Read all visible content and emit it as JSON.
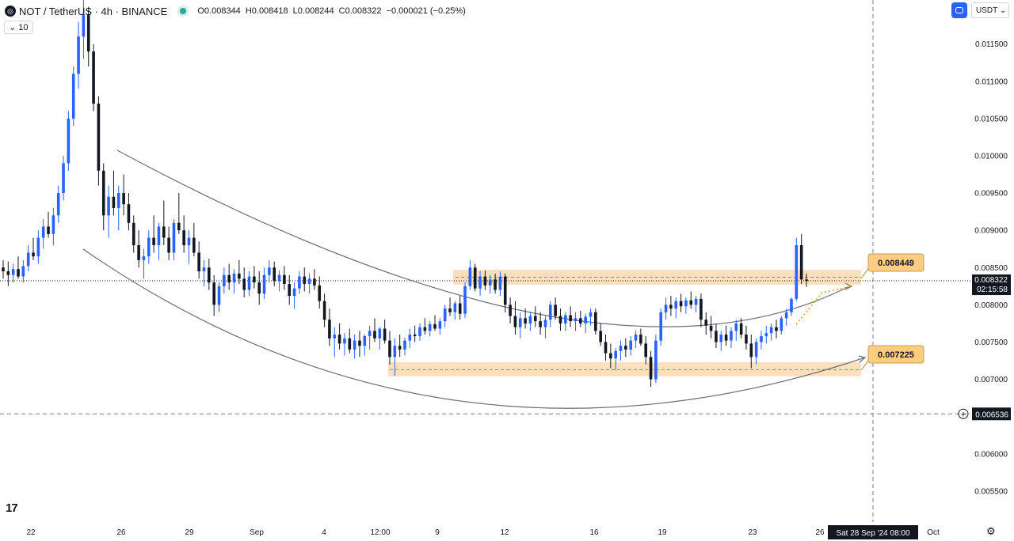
{
  "header": {
    "symbol_title": "NOT / TetherUS · 4h · BINANCE",
    "open_label": "O",
    "open": "0.008344",
    "high_label": "H",
    "high": "0.008418",
    "low_label": "L",
    "low": "0.008244",
    "close_label": "C",
    "close": "0.008322",
    "change": "−0.000021 (−0.25%)",
    "indicator_value": "10",
    "currency": "USDT"
  },
  "colors": {
    "up": "#2962ff",
    "down": "#131722",
    "zone": "#fbd5a8",
    "label_bg": "#ffcc80",
    "projection": "#ff9800",
    "curve": "#6b6e78"
  },
  "chart_data": {
    "type": "candlestick",
    "title": "",
    "xlabel": "",
    "ylabel": "",
    "ylim": [
      0.0052,
      0.0121
    ],
    "y_ticks": [
      "0.011500",
      "0.011000",
      "0.010500",
      "0.010000",
      "0.009500",
      "0.009000",
      "0.008500",
      "0.008000",
      "0.007500",
      "0.007000",
      "0.006500",
      "0.006000",
      "0.005500"
    ],
    "x_ticks": [
      "22",
      "26",
      "29",
      "Sep",
      "4",
      "12:00",
      "9",
      "12",
      "16",
      "19",
      "23",
      "26",
      "Oct"
    ],
    "last_price": "0.008322",
    "countdown": "02:15:58",
    "crosshair_price": "0.006536",
    "crosshair_time": "Sat 28 Sep '24   08:00",
    "resistance_zone": [
      0.00827,
      0.00847
    ],
    "support_zone": [
      0.00704,
      0.00723
    ],
    "targets": [
      "0.008449",
      "0.007225"
    ],
    "series": [
      {
        "name": "",
        "points": [
          [
            0.0085,
            0.0086,
            0.00835,
            0.00845
          ],
          [
            0.00845,
            0.00858,
            0.00825,
            0.0084
          ],
          [
            0.0084,
            0.00855,
            0.0083,
            0.00848
          ],
          [
            0.00848,
            0.00865,
            0.00835,
            0.00838
          ],
          [
            0.00838,
            0.0086,
            0.0083,
            0.00852
          ],
          [
            0.00852,
            0.0088,
            0.00845,
            0.0087
          ],
          [
            0.0087,
            0.0089,
            0.0086,
            0.00865
          ],
          [
            0.00865,
            0.009,
            0.00855,
            0.0089
          ],
          [
            0.0089,
            0.00915,
            0.00875,
            0.00905
          ],
          [
            0.00905,
            0.00925,
            0.0089,
            0.00895
          ],
          [
            0.00895,
            0.0093,
            0.0088,
            0.0092
          ],
          [
            0.0092,
            0.0096,
            0.0091,
            0.0095
          ],
          [
            0.0095,
            0.01,
            0.0094,
            0.0099
          ],
          [
            0.0099,
            0.0106,
            0.0098,
            0.0105
          ],
          [
            0.0105,
            0.0112,
            0.0104,
            0.0111
          ],
          [
            0.0111,
            0.0118,
            0.0109,
            0.0116
          ],
          [
            0.0116,
            0.0121,
            0.0113,
            0.0119
          ],
          [
            0.0119,
            0.012,
            0.0112,
            0.0114
          ],
          [
            0.0114,
            0.0115,
            0.0106,
            0.0107
          ],
          [
            0.0107,
            0.0108,
            0.0096,
            0.0098
          ],
          [
            0.0098,
            0.0099,
            0.009,
            0.0092
          ],
          [
            0.0092,
            0.0096,
            0.0089,
            0.00945
          ],
          [
            0.00945,
            0.0098,
            0.0092,
            0.0093
          ],
          [
            0.0093,
            0.0096,
            0.009,
            0.0095
          ],
          [
            0.0095,
            0.00975,
            0.0092,
            0.00935
          ],
          [
            0.00935,
            0.0095,
            0.009,
            0.0091
          ],
          [
            0.0091,
            0.0092,
            0.0087,
            0.0088
          ],
          [
            0.0088,
            0.009,
            0.0085,
            0.0086
          ],
          [
            0.0086,
            0.00875,
            0.00835,
            0.00865
          ],
          [
            0.00865,
            0.009,
            0.00855,
            0.0089
          ],
          [
            0.0089,
            0.0092,
            0.0087,
            0.0088
          ],
          [
            0.0088,
            0.0091,
            0.0086,
            0.00905
          ],
          [
            0.00905,
            0.0094,
            0.0088,
            0.0089
          ],
          [
            0.0089,
            0.00905,
            0.0086,
            0.0087
          ],
          [
            0.0087,
            0.00915,
            0.0086,
            0.0091
          ],
          [
            0.0091,
            0.0095,
            0.00895,
            0.009
          ],
          [
            0.009,
            0.0092,
            0.0087,
            0.0088
          ],
          [
            0.0088,
            0.009,
            0.00855,
            0.0089
          ],
          [
            0.0089,
            0.0091,
            0.00865,
            0.0087
          ],
          [
            0.0087,
            0.00885,
            0.00835,
            0.00845
          ],
          [
            0.00845,
            0.0086,
            0.00825,
            0.0085
          ],
          [
            0.0085,
            0.00862,
            0.0082,
            0.0083
          ],
          [
            0.0083,
            0.0084,
            0.00785,
            0.008
          ],
          [
            0.008,
            0.0083,
            0.0079,
            0.00825
          ],
          [
            0.00825,
            0.0085,
            0.00815,
            0.0084
          ],
          [
            0.0084,
            0.00855,
            0.0082,
            0.0083
          ],
          [
            0.0083,
            0.00848,
            0.00815,
            0.00842
          ],
          [
            0.00842,
            0.0086,
            0.00828,
            0.00835
          ],
          [
            0.00835,
            0.0085,
            0.0081,
            0.0082
          ],
          [
            0.0082,
            0.00845,
            0.00812,
            0.00838
          ],
          [
            0.00838,
            0.00852,
            0.00822,
            0.0083
          ],
          [
            0.0083,
            0.00845,
            0.008,
            0.00815
          ],
          [
            0.00815,
            0.0085,
            0.00808,
            0.0084
          ],
          [
            0.0084,
            0.0086,
            0.0083,
            0.0085
          ],
          [
            0.0085,
            0.00858,
            0.00825,
            0.00832
          ],
          [
            0.00832,
            0.00846,
            0.00818,
            0.0084
          ],
          [
            0.0084,
            0.00852,
            0.0082,
            0.00828
          ],
          [
            0.00828,
            0.0084,
            0.008,
            0.00812
          ],
          [
            0.00812,
            0.0083,
            0.00795,
            0.00822
          ],
          [
            0.00822,
            0.00845,
            0.00815,
            0.00838
          ],
          [
            0.00838,
            0.0085,
            0.00818,
            0.00828
          ],
          [
            0.00828,
            0.00842,
            0.00815,
            0.00835
          ],
          [
            0.00835,
            0.00848,
            0.0082,
            0.00826
          ],
          [
            0.00826,
            0.00838,
            0.00795,
            0.00805
          ],
          [
            0.00805,
            0.00815,
            0.0077,
            0.0078
          ],
          [
            0.0078,
            0.00795,
            0.00745,
            0.00755
          ],
          [
            0.00755,
            0.0077,
            0.0073,
            0.0076
          ],
          [
            0.0076,
            0.00775,
            0.0074,
            0.00748
          ],
          [
            0.00748,
            0.00762,
            0.00732,
            0.00755
          ],
          [
            0.00755,
            0.00768,
            0.00735,
            0.0074
          ],
          [
            0.0074,
            0.0076,
            0.00728,
            0.00752
          ],
          [
            0.00752,
            0.00765,
            0.0073,
            0.00745
          ],
          [
            0.00745,
            0.0076,
            0.00732,
            0.00758
          ],
          [
            0.00758,
            0.00772,
            0.0074,
            0.00765
          ],
          [
            0.00765,
            0.00782,
            0.0075,
            0.00755
          ],
          [
            0.00755,
            0.0077,
            0.0074,
            0.00768
          ],
          [
            0.00768,
            0.0078,
            0.00748,
            0.00752
          ],
          [
            0.00752,
            0.00765,
            0.0072,
            0.0073
          ],
          [
            0.0073,
            0.00755,
            0.00705,
            0.00745
          ],
          [
            0.00745,
            0.0076,
            0.0073,
            0.0074
          ],
          [
            0.0074,
            0.00756,
            0.00732,
            0.00752
          ],
          [
            0.00752,
            0.00768,
            0.00742,
            0.0076
          ],
          [
            0.0076,
            0.00772,
            0.0075,
            0.00758
          ],
          [
            0.00758,
            0.00775,
            0.00752,
            0.0077
          ],
          [
            0.0077,
            0.00782,
            0.0076,
            0.00765
          ],
          [
            0.00765,
            0.00778,
            0.00758,
            0.00774
          ],
          [
            0.00774,
            0.00786,
            0.00765,
            0.00768
          ],
          [
            0.00768,
            0.00782,
            0.0076,
            0.00778
          ],
          [
            0.00778,
            0.008,
            0.0077,
            0.00795
          ],
          [
            0.00795,
            0.0081,
            0.00785,
            0.0079
          ],
          [
            0.0079,
            0.00805,
            0.0078,
            0.00802
          ],
          [
            0.00802,
            0.00812,
            0.0078,
            0.00788
          ],
          [
            0.00788,
            0.0083,
            0.00782,
            0.00825
          ],
          [
            0.00825,
            0.0086,
            0.0082,
            0.0085
          ],
          [
            0.0085,
            0.00855,
            0.00818,
            0.00822
          ],
          [
            0.00822,
            0.00845,
            0.00812,
            0.00838
          ],
          [
            0.00838,
            0.00846,
            0.0082,
            0.00826
          ],
          [
            0.00826,
            0.0084,
            0.00815,
            0.00834
          ],
          [
            0.00834,
            0.00842,
            0.00815,
            0.0082
          ],
          [
            0.0082,
            0.00845,
            0.00812,
            0.00838
          ],
          [
            0.00838,
            0.00842,
            0.0079,
            0.008
          ],
          [
            0.008,
            0.0081,
            0.00775,
            0.00785
          ],
          [
            0.00785,
            0.00805,
            0.0076,
            0.0077
          ],
          [
            0.0077,
            0.0079,
            0.00755,
            0.00782
          ],
          [
            0.00782,
            0.00795,
            0.00768,
            0.00775
          ],
          [
            0.00775,
            0.0079,
            0.00765,
            0.00785
          ],
          [
            0.00785,
            0.00798,
            0.0077,
            0.00778
          ],
          [
            0.00778,
            0.0079,
            0.0076,
            0.0077
          ],
          [
            0.0077,
            0.00785,
            0.00755,
            0.0078
          ],
          [
            0.0078,
            0.00805,
            0.0077,
            0.008
          ],
          [
            0.008,
            0.0081,
            0.0078,
            0.00785
          ],
          [
            0.00785,
            0.00795,
            0.00765,
            0.00775
          ],
          [
            0.00775,
            0.0079,
            0.00765,
            0.00786
          ],
          [
            0.00786,
            0.00798,
            0.0077,
            0.00778
          ],
          [
            0.00778,
            0.0079,
            0.00765,
            0.00782
          ],
          [
            0.00782,
            0.00792,
            0.0077,
            0.00775
          ],
          [
            0.00775,
            0.00788,
            0.00762,
            0.00784
          ],
          [
            0.00784,
            0.00795,
            0.00772,
            0.0079
          ],
          [
            0.0079,
            0.00795,
            0.0076,
            0.00765
          ],
          [
            0.00765,
            0.00775,
            0.00745,
            0.0075
          ],
          [
            0.0075,
            0.0076,
            0.00725,
            0.00735
          ],
          [
            0.00735,
            0.00748,
            0.00715,
            0.00728
          ],
          [
            0.00728,
            0.00742,
            0.00712,
            0.00738
          ],
          [
            0.00738,
            0.00752,
            0.00725,
            0.00745
          ],
          [
            0.00745,
            0.00755,
            0.0073,
            0.0074
          ],
          [
            0.0074,
            0.00758,
            0.00732,
            0.00752
          ],
          [
            0.00752,
            0.00765,
            0.00742,
            0.0076
          ],
          [
            0.0076,
            0.00768,
            0.00745,
            0.00748
          ],
          [
            0.00748,
            0.00758,
            0.0072,
            0.0073
          ],
          [
            0.0073,
            0.00738,
            0.0069,
            0.007
          ],
          [
            0.007,
            0.0076,
            0.00695,
            0.00752
          ],
          [
            0.00752,
            0.00795,
            0.00745,
            0.0079
          ],
          [
            0.0079,
            0.0081,
            0.0078,
            0.008
          ],
          [
            0.008,
            0.00812,
            0.00785,
            0.00795
          ],
          [
            0.00795,
            0.0081,
            0.00782,
            0.00805
          ],
          [
            0.00805,
            0.00815,
            0.0079,
            0.00798
          ],
          [
            0.00798,
            0.0081,
            0.00788,
            0.00806
          ],
          [
            0.00806,
            0.00818,
            0.00795,
            0.008
          ],
          [
            0.008,
            0.00812,
            0.0079,
            0.00808
          ],
          [
            0.00808,
            0.00815,
            0.0077,
            0.0078
          ],
          [
            0.0078,
            0.0079,
            0.0076,
            0.00772
          ],
          [
            0.00772,
            0.00785,
            0.00755,
            0.00765
          ],
          [
            0.00765,
            0.00775,
            0.00742,
            0.0075
          ],
          [
            0.0075,
            0.00765,
            0.00738,
            0.0076
          ],
          [
            0.0076,
            0.00772,
            0.00745,
            0.00752
          ],
          [
            0.00752,
            0.0077,
            0.00742,
            0.00765
          ],
          [
            0.00765,
            0.0078,
            0.00752,
            0.00775
          ],
          [
            0.00775,
            0.00782,
            0.00755,
            0.0076
          ],
          [
            0.0076,
            0.00772,
            0.0074,
            0.00748
          ],
          [
            0.00748,
            0.0076,
            0.00715,
            0.0073
          ],
          [
            0.0073,
            0.00755,
            0.0072,
            0.0075
          ],
          [
            0.0075,
            0.00765,
            0.0074,
            0.00758
          ],
          [
            0.00758,
            0.00772,
            0.00748,
            0.00762
          ],
          [
            0.00762,
            0.00775,
            0.00752,
            0.0077
          ],
          [
            0.0077,
            0.0078,
            0.00755,
            0.00765
          ],
          [
            0.00765,
            0.00785,
            0.0076,
            0.00782
          ],
          [
            0.00782,
            0.00795,
            0.00772,
            0.0079
          ],
          [
            0.0079,
            0.0081,
            0.00785,
            0.00808
          ],
          [
            0.00808,
            0.0089,
            0.00805,
            0.0088
          ],
          [
            0.0088,
            0.00895,
            0.00828,
            0.00834
          ],
          [
            0.00834,
            0.00842,
            0.00824,
            0.00832
          ]
        ]
      }
    ]
  }
}
